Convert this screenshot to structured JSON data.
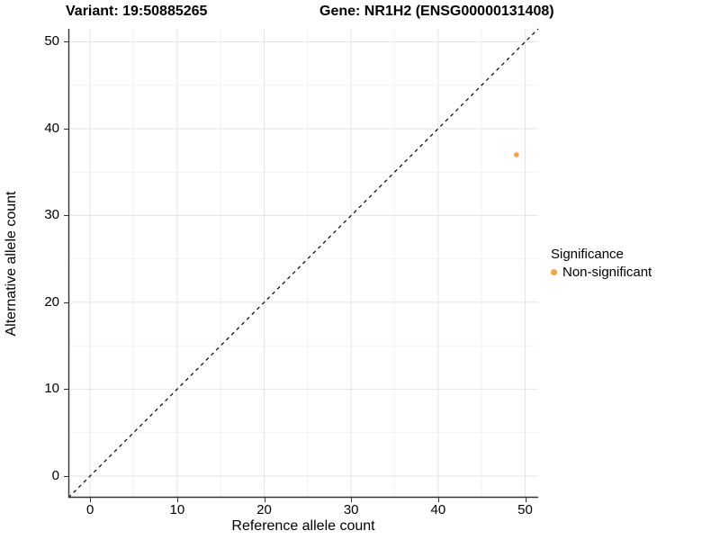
{
  "header": {
    "variant_title": "Variant: 19:50885265",
    "gene_title": "Gene: NR1H2 (ENSG00000131408)"
  },
  "axes": {
    "x_label": "Reference allele count",
    "y_label": "Alternative allele count"
  },
  "legend": {
    "title": "Significance",
    "items": [
      {
        "label": "Non-significant",
        "color": "#F8A43C"
      }
    ]
  },
  "colors": {
    "point": "#F8A43C",
    "axis_line": "#333333",
    "major_grid": "#E4E4E4",
    "minor_grid": "#F2F2F2",
    "reference_line": "#000000"
  },
  "chart_data": {
    "type": "scatter",
    "title": "Variant: 19:50885265   Gene: NR1H2 (ENSG00000131408)",
    "xlabel": "Reference allele count",
    "ylabel": "Alternative allele count",
    "xlim": [
      -2.5,
      51.5
    ],
    "ylim": [
      -2.5,
      51.5
    ],
    "x_ticks": [
      0,
      10,
      20,
      30,
      40,
      50
    ],
    "y_ticks": [
      0,
      10,
      20,
      30,
      40,
      50
    ],
    "x_minor_ticks": [
      5,
      15,
      25,
      35,
      45
    ],
    "y_minor_ticks": [
      5,
      15,
      25,
      35,
      45
    ],
    "grid": true,
    "legend_position": "right",
    "legend_title": "Significance",
    "reference_line": {
      "type": "identity",
      "equation": "y = x",
      "style": "dashed"
    },
    "series": [
      {
        "name": "Non-significant",
        "color": "#F8A43C",
        "points": [
          {
            "x": 49,
            "y": 37
          }
        ]
      }
    ]
  }
}
